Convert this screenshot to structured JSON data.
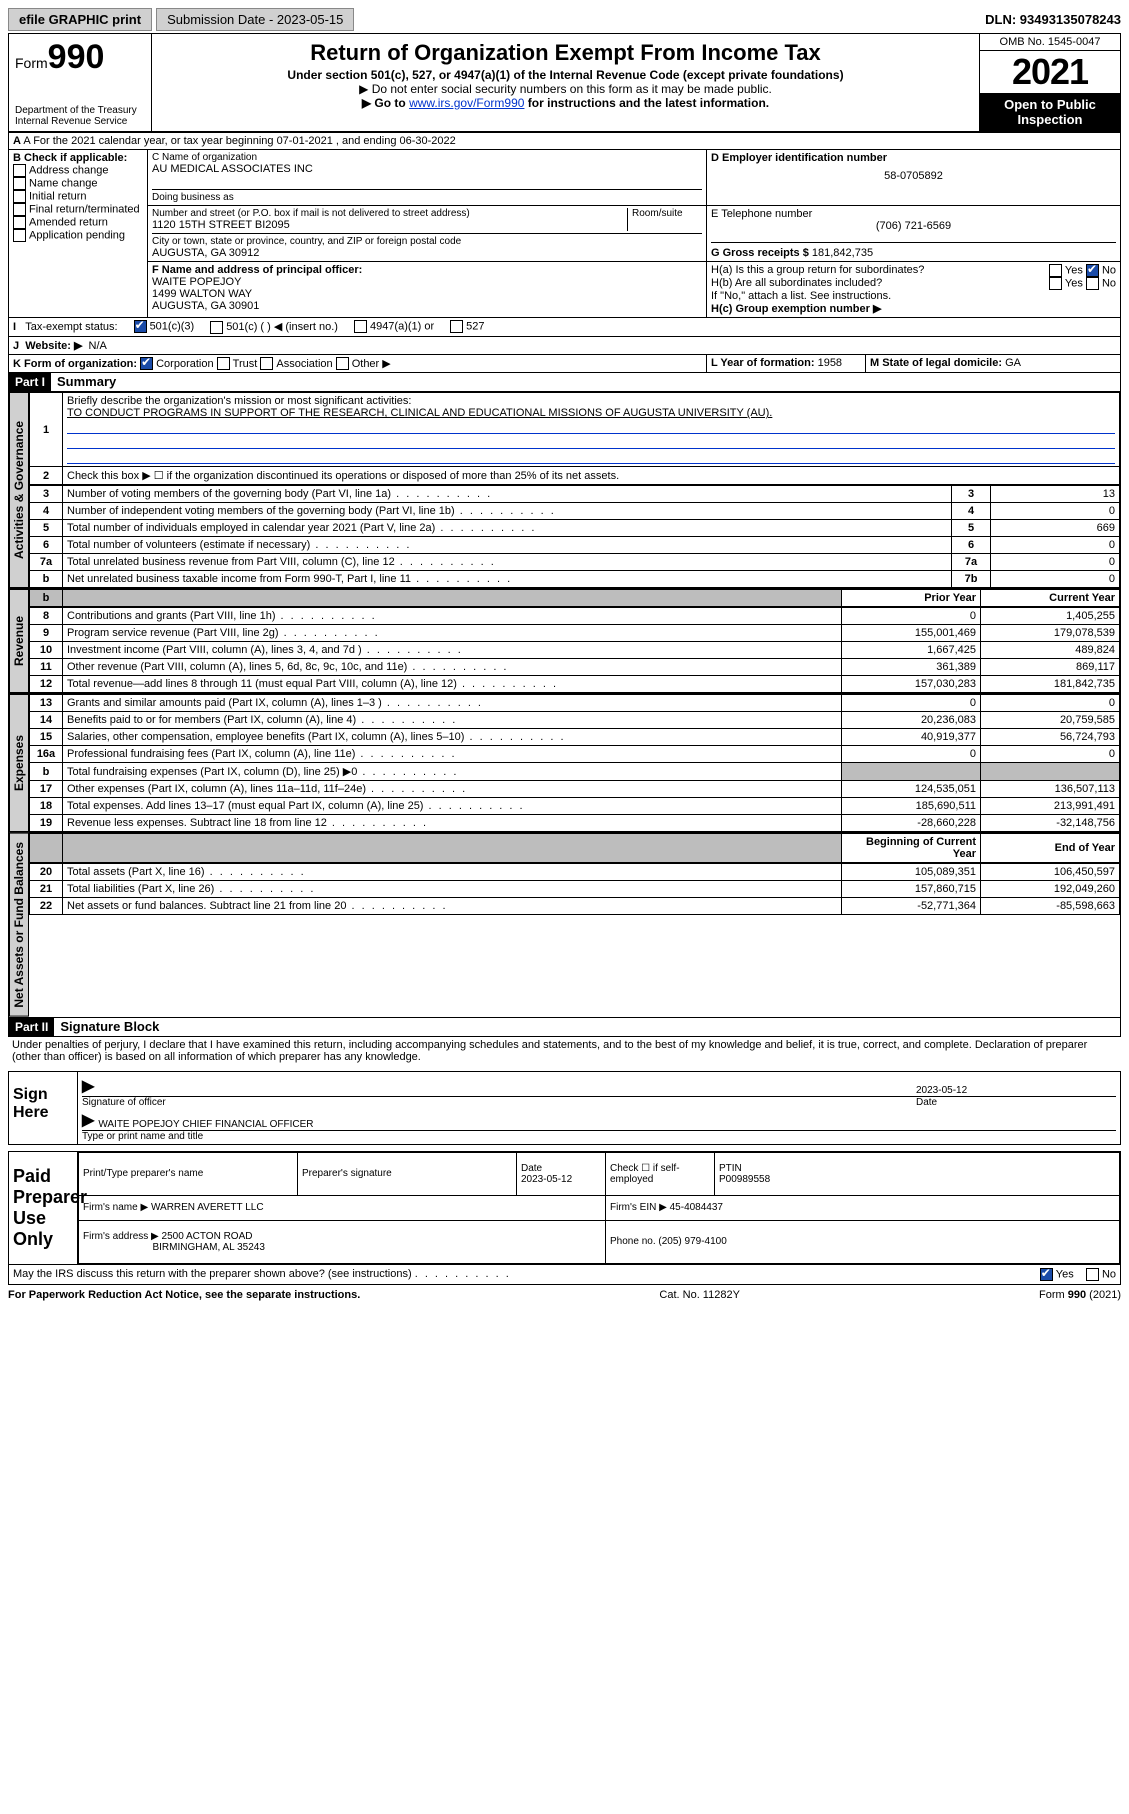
{
  "topbar": {
    "efile": "efile GRAPHIC print",
    "submission": "Submission Date - 2023-05-15",
    "dln": "DLN: 93493135078243"
  },
  "header": {
    "form_prefix": "Form",
    "form_number": "990",
    "dept": "Department of the Treasury Internal Revenue Service",
    "title": "Return of Organization Exempt From Income Tax",
    "sub1": "Under section 501(c), 527, or 4947(a)(1) of the Internal Revenue Code (except private foundations)",
    "sub2": "▶ Do not enter social security numbers on this form as it may be made public.",
    "sub3_pre": "▶ Go to ",
    "sub3_link": "www.irs.gov/Form990",
    "sub3_post": " for instructions and the latest information.",
    "omb": "OMB No. 1545-0047",
    "year": "2021",
    "open_public": "Open to Public Inspection"
  },
  "sectionA": {
    "a_line": "A For the 2021 calendar year, or tax year beginning 07-01-2021     , and ending 06-30-2022",
    "b_title": "B Check if applicable:",
    "b_items": [
      "Address change",
      "Name change",
      "Initial return",
      "Final return/terminated",
      "Amended return",
      "Application pending"
    ],
    "c_title": "C Name of organization",
    "c_name": "AU MEDICAL ASSOCIATES INC",
    "dba": "Doing business as",
    "addr_title": "Number and street (or P.O. box if mail is not delivered to street address)",
    "room": "Room/suite",
    "addr": "1120 15TH STREET BI2095",
    "city_title": "City or town, state or province, country, and ZIP or foreign postal code",
    "city": "AUGUSTA, GA  30912",
    "d_title": "D Employer identification number",
    "d_val": "58-0705892",
    "e_title": "E Telephone number",
    "e_val": "(706) 721-6569",
    "g_title": "G Gross receipts $",
    "g_val": "181,842,735",
    "f_title": "F  Name and address of principal officer:",
    "f_name": "WAITE POPEJOY",
    "f_addr1": "1499 WALTON WAY",
    "f_addr2": "AUGUSTA, GA  30901",
    "h_a": "H(a)  Is this a group return for subordinates?",
    "h_b": "H(b)  Are all subordinates included?",
    "h_note": "If \"No,\" attach a list. See instructions.",
    "h_c": "H(c)  Group exemption number ▶",
    "yes": "Yes",
    "no": "No",
    "i_title": "Tax-exempt status:",
    "i_501c3": "501(c)(3)",
    "i_501c": "501(c) (  ) ◀ (insert no.)",
    "i_4947": "4947(a)(1) or",
    "i_527": "527",
    "j_title": "Website: ▶",
    "j_val": "N/A",
    "k_title": "K Form of organization:",
    "k_corp": "Corporation",
    "k_trust": "Trust",
    "k_assoc": "Association",
    "k_other": "Other ▶",
    "l_title": "L Year of formation:",
    "l_val": "1958",
    "m_title": "M State of legal domicile:",
    "m_val": "GA"
  },
  "part1": {
    "label": "Part I",
    "title": "Summary",
    "vtab1": "Activities & Governance",
    "vtab2": "Revenue",
    "vtab3": "Expenses",
    "vtab4": "Net Assets or Fund Balances",
    "line1_label": "Briefly describe the organization's mission or most significant activities:",
    "line1_text": "TO CONDUCT PROGRAMS IN SUPPORT OF THE RESEARCH, CLINICAL AND EDUCATIONAL MISSIONS OF AUGUSTA UNIVERSITY (AU).",
    "line2": "Check this box ▶ ☐  if the organization discontinued its operations or disposed of more than 25% of its net assets.",
    "rows_gov": [
      {
        "n": "3",
        "label": "Number of voting members of the governing body (Part VI, line 1a)",
        "box": "3",
        "val": "13"
      },
      {
        "n": "4",
        "label": "Number of independent voting members of the governing body (Part VI, line 1b)",
        "box": "4",
        "val": "0"
      },
      {
        "n": "5",
        "label": "Total number of individuals employed in calendar year 2021 (Part V, line 2a)",
        "box": "5",
        "val": "669"
      },
      {
        "n": "6",
        "label": "Total number of volunteers (estimate if necessary)",
        "box": "6",
        "val": "0"
      },
      {
        "n": "7a",
        "label": "Total unrelated business revenue from Part VIII, column (C), line 12",
        "box": "7a",
        "val": "0"
      },
      {
        "n": "b",
        "label": "Net unrelated business taxable income from Form 990-T, Part I, line 11",
        "box": "7b",
        "val": "0"
      }
    ],
    "hdr_prior": "Prior Year",
    "hdr_curr": "Current Year",
    "rows_rev": [
      {
        "n": "8",
        "label": "Contributions and grants (Part VIII, line 1h)",
        "prior": "0",
        "curr": "1,405,255"
      },
      {
        "n": "9",
        "label": "Program service revenue (Part VIII, line 2g)",
        "prior": "155,001,469",
        "curr": "179,078,539"
      },
      {
        "n": "10",
        "label": "Investment income (Part VIII, column (A), lines 3, 4, and 7d )",
        "prior": "1,667,425",
        "curr": "489,824"
      },
      {
        "n": "11",
        "label": "Other revenue (Part VIII, column (A), lines 5, 6d, 8c, 9c, 10c, and 11e)",
        "prior": "361,389",
        "curr": "869,117"
      },
      {
        "n": "12",
        "label": "Total revenue—add lines 8 through 11 (must equal Part VIII, column (A), line 12)",
        "prior": "157,030,283",
        "curr": "181,842,735"
      }
    ],
    "rows_exp": [
      {
        "n": "13",
        "label": "Grants and similar amounts paid (Part IX, column (A), lines 1–3 )",
        "prior": "0",
        "curr": "0"
      },
      {
        "n": "14",
        "label": "Benefits paid to or for members (Part IX, column (A), line 4)",
        "prior": "20,236,083",
        "curr": "20,759,585"
      },
      {
        "n": "15",
        "label": "Salaries, other compensation, employee benefits (Part IX, column (A), lines 5–10)",
        "prior": "40,919,377",
        "curr": "56,724,793"
      },
      {
        "n": "16a",
        "label": "Professional fundraising fees (Part IX, column (A), line 11e)",
        "prior": "0",
        "curr": "0"
      },
      {
        "n": "b",
        "label": "Total fundraising expenses (Part IX, column (D), line 25) ▶0",
        "prior_grey": true,
        "curr_grey": true
      },
      {
        "n": "17",
        "label": "Other expenses (Part IX, column (A), lines 11a–11d, 11f–24e)",
        "prior": "124,535,051",
        "curr": "136,507,113"
      },
      {
        "n": "18",
        "label": "Total expenses. Add lines 13–17 (must equal Part IX, column (A), line 25)",
        "prior": "185,690,511",
        "curr": "213,991,491"
      },
      {
        "n": "19",
        "label": "Revenue less expenses. Subtract line 18 from line 12",
        "prior": "-28,660,228",
        "curr": "-32,148,756"
      }
    ],
    "hdr_begin": "Beginning of Current Year",
    "hdr_end": "End of Year",
    "rows_net": [
      {
        "n": "20",
        "label": "Total assets (Part X, line 16)",
        "prior": "105,089,351",
        "curr": "106,450,597"
      },
      {
        "n": "21",
        "label": "Total liabilities (Part X, line 26)",
        "prior": "157,860,715",
        "curr": "192,049,260"
      },
      {
        "n": "22",
        "label": "Net assets or fund balances. Subtract line 21 from line 20",
        "prior": "-52,771,364",
        "curr": "-85,598,663"
      }
    ]
  },
  "part2": {
    "label": "Part II",
    "title": "Signature Block",
    "decl": "Under penalties of perjury, I declare that I have examined this return, including accompanying schedules and statements, and to the best of my knowledge and belief, it is true, correct, and complete. Declaration of preparer (other than officer) is based on all information of which preparer has any knowledge.",
    "sign_here": "Sign Here",
    "sig_officer": "Signature of officer",
    "sig_date": "2023-05-12",
    "date_lbl": "Date",
    "officer_name": "WAITE POPEJOY CHIEF FINANCIAL OFFICER",
    "type_name": "Type or print name and title",
    "paid_preparer": "Paid Preparer Use Only",
    "pp_name_lbl": "Print/Type preparer's name",
    "pp_sig_lbl": "Preparer's signature",
    "pp_date_lbl": "Date",
    "pp_date": "2023-05-12",
    "pp_check": "Check ☐ if self-employed",
    "pp_ptin_lbl": "PTIN",
    "pp_ptin": "P00989558",
    "firm_name_lbl": "Firm's name    ▶",
    "firm_name": "WARREN AVERETT LLC",
    "firm_ein_lbl": "Firm's EIN ▶",
    "firm_ein": "45-4084437",
    "firm_addr_lbl": "Firm's address ▶",
    "firm_addr1": "2500 ACTON ROAD",
    "firm_addr2": "BIRMINGHAM, AL  35243",
    "phone_lbl": "Phone no.",
    "phone": "(205) 979-4100",
    "may_irs": "May the IRS discuss this return with the preparer shown above? (see instructions)",
    "yes": "Yes",
    "no": "No"
  },
  "footer": {
    "left": "For Paperwork Reduction Act Notice, see the separate instructions.",
    "mid": "Cat. No. 11282Y",
    "right": "Form 990 (2021)"
  }
}
